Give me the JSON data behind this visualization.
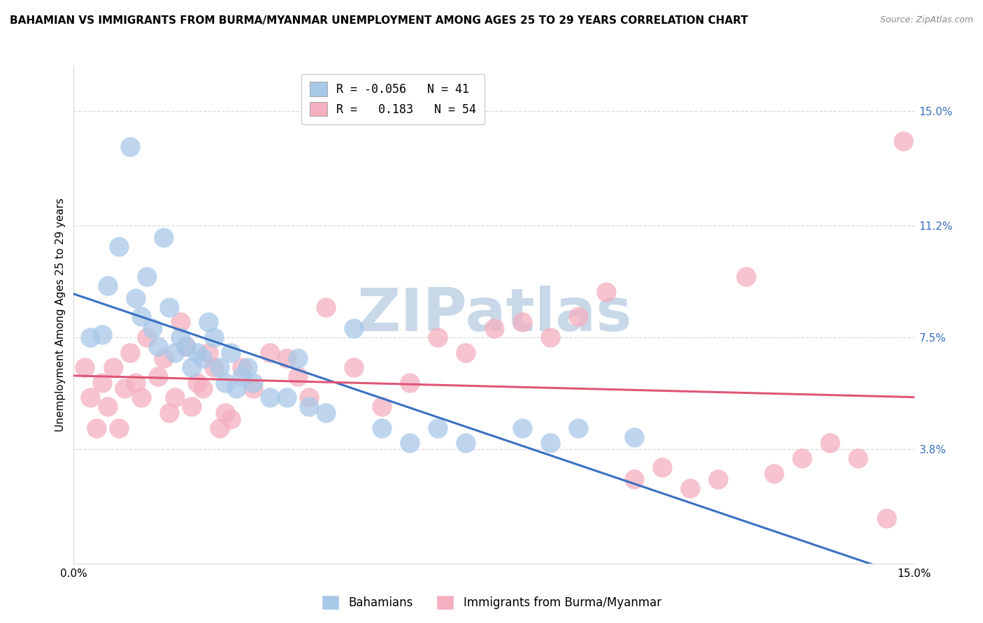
{
  "title": "BAHAMIAN VS IMMIGRANTS FROM BURMA/MYANMAR UNEMPLOYMENT AMONG AGES 25 TO 29 YEARS CORRELATION CHART",
  "source": "Source: ZipAtlas.com",
  "ylabel": "Unemployment Among Ages 25 to 29 years",
  "y_ticks": [
    3.8,
    7.5,
    11.2,
    15.0
  ],
  "xlim": [
    0.0,
    15.0
  ],
  "ylim": [
    0.0,
    16.5
  ],
  "bahamian_label": "Bahamians",
  "burma_label": "Immigrants from Burma/Myanmar",
  "bahamian_color": "#a8c8e8",
  "burma_color": "#f4afc0",
  "blue_line_color": "#3a70c0",
  "pink_line_color": "#e05575",
  "tick_color": "#3a70c0",
  "watermark_text": "ZIPatlas",
  "watermark_color": "#c8d8e8",
  "grid_color": "#d8d8d8",
  "title_fontsize": 11,
  "axis_fontsize": 11,
  "legend_fontsize": 12,
  "blue_R": -0.056,
  "blue_N": 41,
  "pink_R": 0.183,
  "pink_N": 54,
  "blue_x": [
    0.3,
    0.5,
    0.6,
    0.8,
    1.0,
    1.1,
    1.2,
    1.3,
    1.4,
    1.5,
    1.6,
    1.7,
    1.8,
    1.9,
    2.0,
    2.1,
    2.2,
    2.3,
    2.4,
    2.5,
    2.6,
    2.7,
    2.8,
    2.9,
    3.0,
    3.1,
    3.2,
    3.5,
    3.8,
    4.0,
    4.2,
    4.5,
    5.0,
    5.5,
    6.0,
    6.5,
    7.0,
    8.0,
    8.5,
    9.0,
    10.0
  ],
  "blue_y": [
    7.5,
    7.6,
    9.2,
    10.5,
    13.8,
    8.8,
    8.2,
    9.5,
    7.8,
    7.2,
    10.8,
    8.5,
    7.0,
    7.5,
    7.2,
    6.5,
    7.0,
    6.8,
    8.0,
    7.5,
    6.5,
    6.0,
    7.0,
    5.8,
    6.2,
    6.5,
    6.0,
    5.5,
    5.5,
    6.8,
    5.2,
    5.0,
    7.8,
    4.5,
    4.0,
    4.5,
    4.0,
    4.5,
    4.0,
    4.5,
    4.2
  ],
  "pink_x": [
    0.2,
    0.3,
    0.4,
    0.5,
    0.6,
    0.7,
    0.8,
    0.9,
    1.0,
    1.1,
    1.2,
    1.3,
    1.5,
    1.6,
    1.7,
    1.8,
    1.9,
    2.0,
    2.1,
    2.2,
    2.3,
    2.4,
    2.5,
    2.6,
    2.7,
    2.8,
    3.0,
    3.2,
    3.5,
    3.8,
    4.0,
    4.2,
    4.5,
    5.0,
    5.5,
    6.0,
    6.5,
    7.0,
    7.5,
    8.0,
    8.5,
    9.0,
    9.5,
    10.0,
    10.5,
    11.0,
    11.5,
    12.0,
    12.5,
    13.0,
    13.5,
    14.0,
    14.5,
    14.8
  ],
  "pink_y": [
    6.5,
    5.5,
    4.5,
    6.0,
    5.2,
    6.5,
    4.5,
    5.8,
    7.0,
    6.0,
    5.5,
    7.5,
    6.2,
    6.8,
    5.0,
    5.5,
    8.0,
    7.2,
    5.2,
    6.0,
    5.8,
    7.0,
    6.5,
    4.5,
    5.0,
    4.8,
    6.5,
    5.8,
    7.0,
    6.8,
    6.2,
    5.5,
    8.5,
    6.5,
    5.2,
    6.0,
    7.5,
    7.0,
    7.8,
    8.0,
    7.5,
    8.2,
    9.0,
    2.8,
    3.2,
    2.5,
    2.8,
    9.5,
    3.0,
    3.5,
    4.0,
    3.5,
    1.5,
    14.0
  ]
}
